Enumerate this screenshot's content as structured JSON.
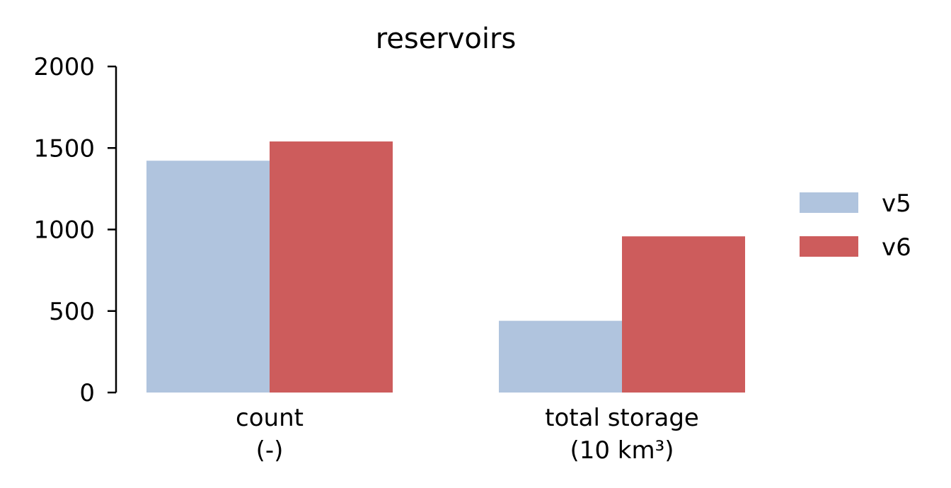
{
  "chart_data": {
    "type": "bar",
    "title": "reservoirs",
    "xlabel": "",
    "ylabel": "",
    "ylim": [
      0,
      2000
    ],
    "yticks": [
      "0",
      "500",
      "1000",
      "1500",
      "2000"
    ],
    "categories": [
      {
        "line1": "count",
        "line2": "(-)"
      },
      {
        "line1": "total storage",
        "line2": "(10 km³)"
      }
    ],
    "series": [
      {
        "name": "v5",
        "color": "#b0c4de",
        "values": [
          1422,
          440
        ]
      },
      {
        "name": "v6",
        "color": "#cd5c5c",
        "values": [
          1540,
          958
        ]
      }
    ],
    "grid": false,
    "legend_position": "right"
  }
}
